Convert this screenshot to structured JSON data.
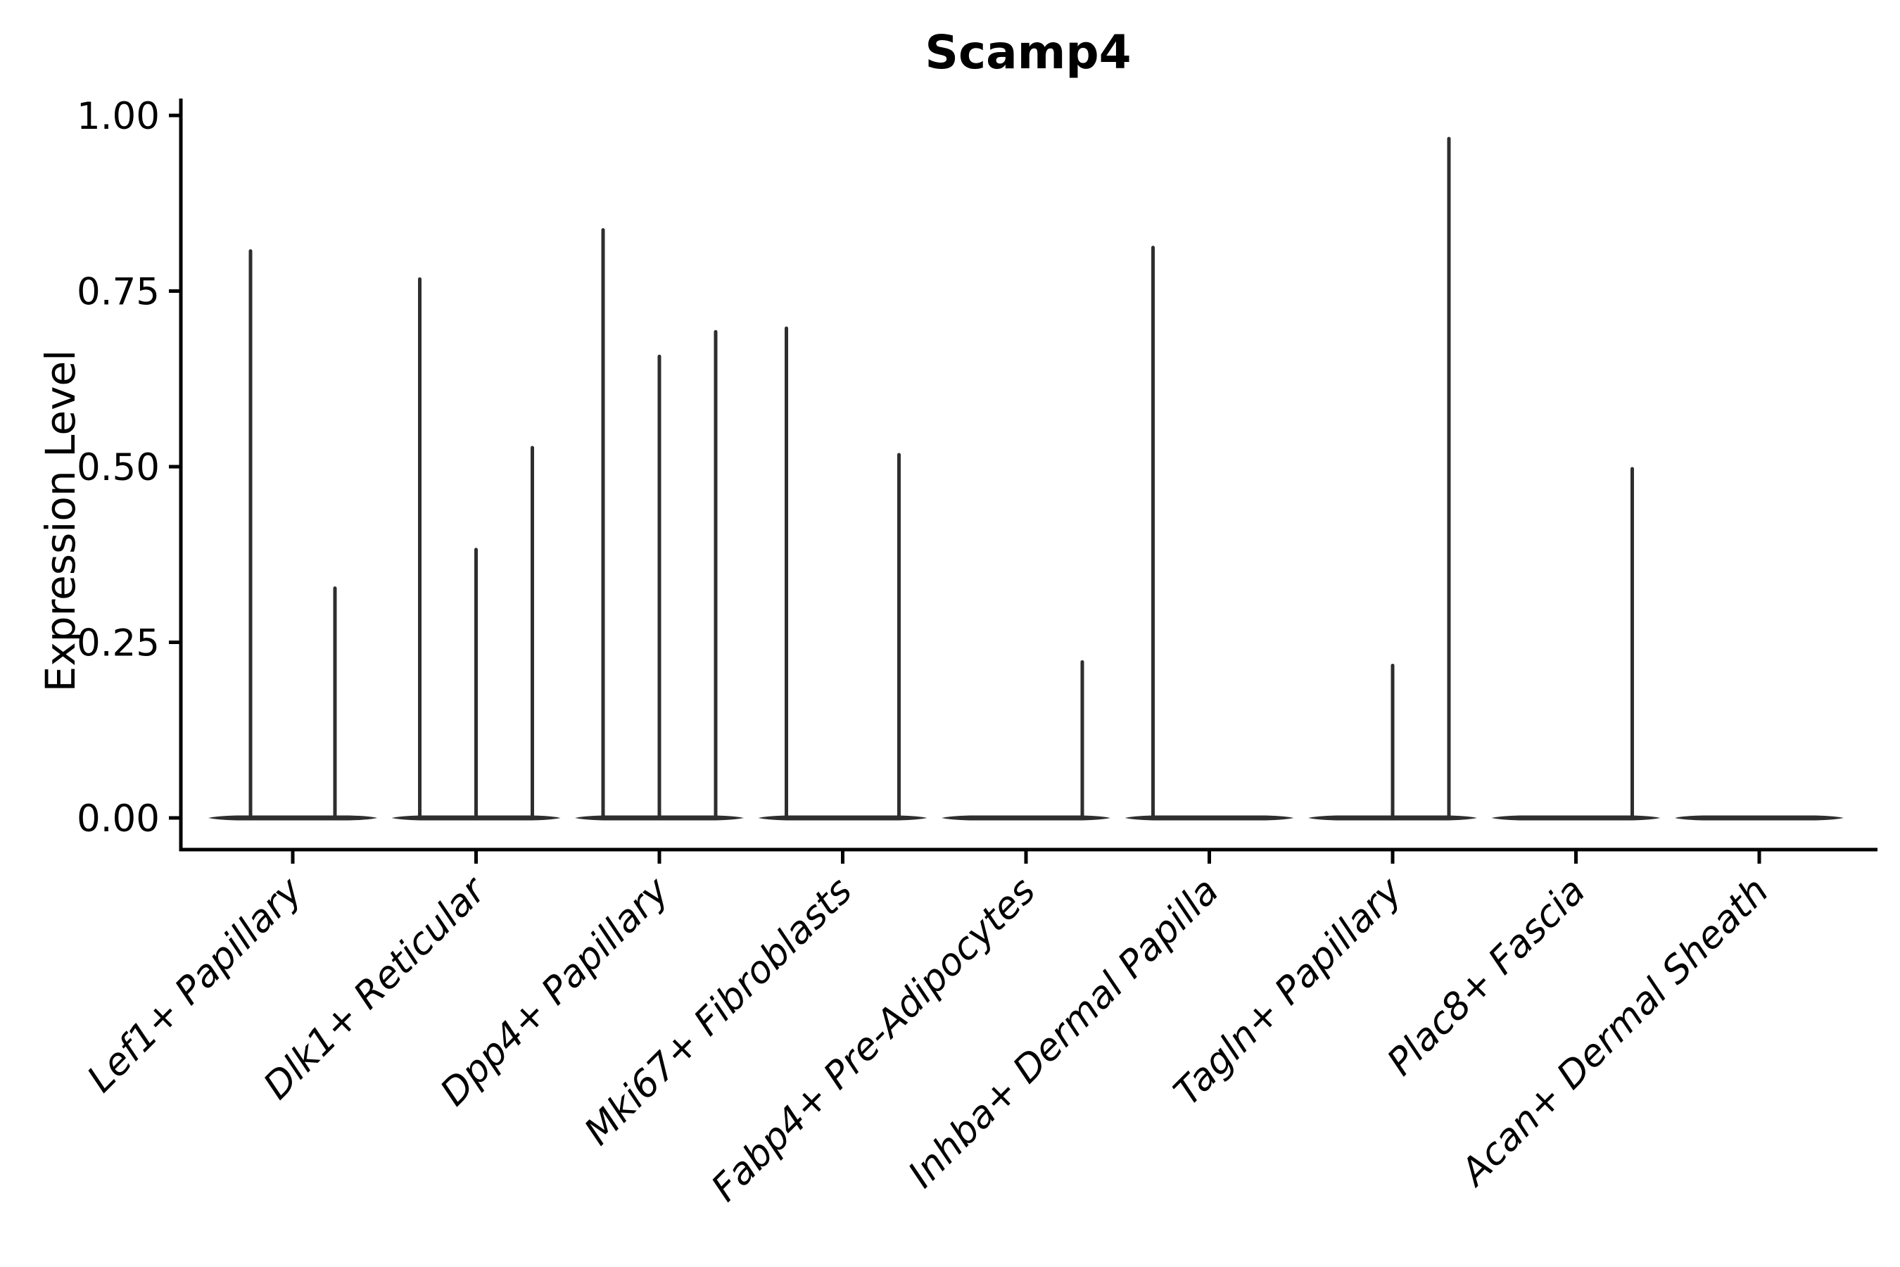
{
  "chart_data": {
    "type": "violin",
    "title": "Scamp4",
    "ylabel": "Expression Level",
    "xlabel": "",
    "ylim": [
      0.0,
      1.0
    ],
    "grid": "off",
    "legend": "none",
    "x_tick_rotation_deg": 45,
    "yticks": [
      {
        "value": 0.0,
        "label": "0.00"
      },
      {
        "value": 0.25,
        "label": "0.25"
      },
      {
        "value": 0.5,
        "label": "0.50"
      },
      {
        "value": 0.75,
        "label": "0.75"
      },
      {
        "value": 1.0,
        "label": "1.00"
      }
    ],
    "categories": [
      "Lef1+ Papillary",
      "Dlk1+ Reticular",
      "Dpp4+ Papillary",
      "Mki67+ Fibroblasts",
      "Fabp4+ Pre-Adipocytes",
      "Inhba+ Dermal Papilla",
      "Tagln+ Papillary",
      "Plac8+ Fascia",
      "Acan+ Dermal Sheath"
    ],
    "groups": [
      {
        "category": "Lef1+ Papillary",
        "violins": [
          {
            "pos": 0.25,
            "peak": 0.81
          },
          {
            "pos": 0.75,
            "peak": 0.33
          }
        ]
      },
      {
        "category": "Dlk1+ Reticular",
        "violins": [
          {
            "pos": 0.1667,
            "peak": 0.77
          },
          {
            "pos": 0.5,
            "peak": 0.385
          },
          {
            "pos": 0.8333,
            "peak": 0.53
          }
        ]
      },
      {
        "category": "Dpp4+ Papillary",
        "violins": [
          {
            "pos": 0.1667,
            "peak": 0.84
          },
          {
            "pos": 0.5,
            "peak": 0.66
          },
          {
            "pos": 0.8333,
            "peak": 0.695
          }
        ]
      },
      {
        "category": "Mki67+ Fibroblasts",
        "violins": [
          {
            "pos": 0.1667,
            "peak": 0.7
          },
          {
            "pos": 0.8333,
            "peak": 0.52
          }
        ]
      },
      {
        "category": "Fabp4+ Pre-Adipocytes",
        "violins": [
          {
            "pos": 0.8333,
            "peak": 0.225
          }
        ]
      },
      {
        "category": "Inhba+ Dermal Papilla",
        "violins": [
          {
            "pos": 0.1667,
            "peak": 0.815
          }
        ]
      },
      {
        "category": "Tagln+ Papillary",
        "violins": [
          {
            "pos": 0.5,
            "peak": 0.22
          },
          {
            "pos": 0.8333,
            "peak": 0.97
          }
        ]
      },
      {
        "category": "Plac8+ Fascia",
        "violins": [
          {
            "pos": 0.8333,
            "peak": 0.5
          }
        ]
      },
      {
        "category": "Acan+ Dermal Sheath",
        "violins": []
      }
    ]
  }
}
